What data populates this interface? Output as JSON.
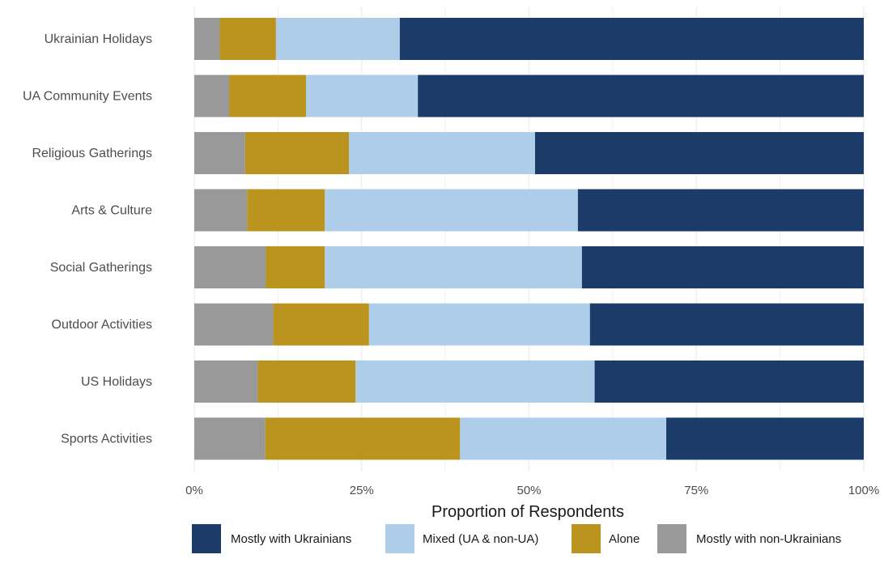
{
  "chart_data": {
    "type": "bar",
    "orientation": "horizontal",
    "stacked": true,
    "title": "",
    "xlabel": "Proportion of Respondents",
    "ylabel": "",
    "xlim": [
      0,
      1
    ],
    "x_ticks": [
      {
        "value": 0,
        "label": "0%"
      },
      {
        "value": 0.25,
        "label": "25%"
      },
      {
        "value": 0.5,
        "label": "50%"
      },
      {
        "value": 0.75,
        "label": "75%"
      },
      {
        "value": 1,
        "label": "100%"
      }
    ],
    "grid": true,
    "legend_position": "bottom",
    "categories": [
      "Ukrainian Holidays",
      "UA Community Events",
      "Religious Gatherings",
      "Arts & Culture",
      "Social Gatherings",
      "Outdoor Activities",
      "US Holidays",
      "Sports Activities"
    ],
    "series": [
      {
        "name": "Mostly with non-Ukrainians",
        "color": "#999999",
        "values": [
          0.038,
          0.052,
          0.076,
          0.079,
          0.107,
          0.118,
          0.095,
          0.106
        ]
      },
      {
        "name": "Alone",
        "color": "#bb9420",
        "values": [
          0.084,
          0.115,
          0.155,
          0.116,
          0.088,
          0.143,
          0.146,
          0.291
        ]
      },
      {
        "name": "Mixed (UA & non-UA)",
        "color": "#aecde9",
        "values": [
          0.185,
          0.167,
          0.278,
          0.378,
          0.384,
          0.33,
          0.357,
          0.308
        ]
      },
      {
        "name": "Mostly with Ukrainians",
        "color": "#1b3c68",
        "values": [
          0.693,
          0.666,
          0.491,
          0.427,
          0.421,
          0.409,
          0.402,
          0.295
        ]
      }
    ],
    "legend_order": [
      "Mostly with Ukrainians",
      "Mixed (UA & non-UA)",
      "Alone",
      "Mostly with non-Ukrainians"
    ]
  }
}
